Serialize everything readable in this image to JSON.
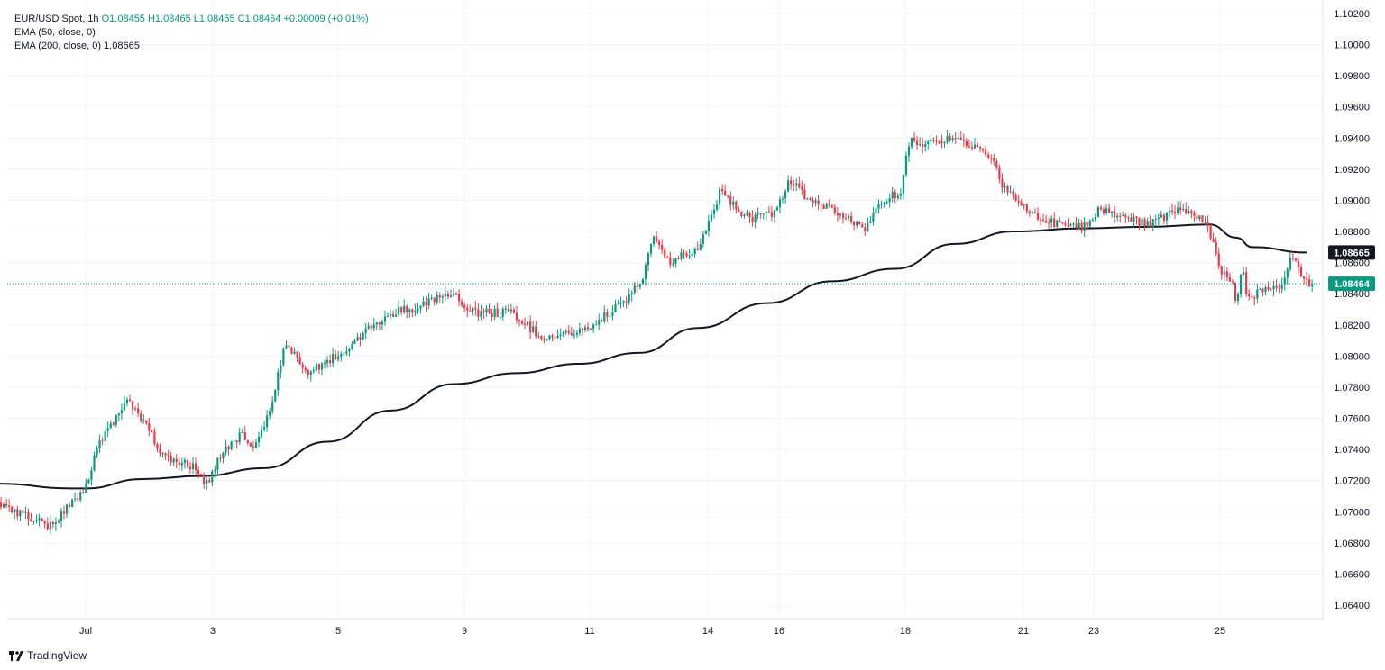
{
  "legend": {
    "symbol": "EUR/USD Spot, 1h",
    "ohlc": "O1.08455  H1.08465  L1.08455  C1.08464  +0.00009 (+0.01%)",
    "ema50": "EMA (50, close, 0)",
    "ema200": "EMA (200, close, 0)",
    "ema200_value": "1.08665"
  },
  "brand": "TradingView",
  "colors": {
    "up": "#089981",
    "down": "#f23645",
    "ema": "#131722",
    "grid": "#f0f3fa",
    "last_price": "#089981"
  },
  "chart_data": {
    "type": "candlestick",
    "symbol": "EUR/USD Spot",
    "timeframe": "1h",
    "ylim": [
      1.063,
      1.1025
    ],
    "y_ticks": [
      "1.10200",
      "1.10000",
      "1.09800",
      "1.09600",
      "1.09400",
      "1.09200",
      "1.09000",
      "1.08800",
      "1.08600",
      "1.08400",
      "1.08200",
      "1.08000",
      "1.07800",
      "1.07600",
      "1.07400",
      "1.07200",
      "1.07000",
      "1.06800",
      "1.06600",
      "1.06400"
    ],
    "x_ticks": [
      "Jul",
      "3",
      "5",
      "9",
      "11",
      "14",
      "16",
      "18",
      "21",
      "23",
      "25"
    ],
    "price_path": [
      [
        "Jun 28 00:00",
        1.0705
      ],
      [
        "Jun 28 14:00",
        1.069
      ],
      [
        "Jul 1 00:00",
        1.0715
      ],
      [
        "Jul 1 04:00",
        1.074
      ],
      [
        "Jul 1 16:00",
        1.077
      ],
      [
        "Jul 1 22:00",
        1.076
      ],
      [
        "Jul 2 06:00",
        1.0735
      ],
      [
        "Jul 2 16:00",
        1.073
      ],
      [
        "Jul 2 22:00",
        1.0718
      ],
      [
        "Jul 3 04:00",
        1.074
      ],
      [
        "Jul 3 12:00",
        1.075
      ],
      [
        "Jul 3 16:00",
        1.074
      ],
      [
        "Jul 3 22:00",
        1.0765
      ],
      [
        "Jul 4 04:00",
        1.0808
      ],
      [
        "Jul 4 12:00",
        1.079
      ],
      [
        "Jul 5 00:00",
        1.08
      ],
      [
        "Jul 5 08:00",
        1.0812
      ],
      [
        "Jul 5 20:00",
        1.0828
      ],
      [
        "Jul 8 04:00",
        1.083
      ],
      [
        "Jul 8 20:00",
        1.084
      ],
      [
        "Jul 9 04:00",
        1.0827
      ],
      [
        "Jul 9 18:00",
        1.0828
      ],
      [
        "Jul 10 06:00",
        1.0812
      ],
      [
        "Jul 10 20:00",
        1.0815
      ],
      [
        "Jul 11 06:00",
        1.0825
      ],
      [
        "Jul 11 16:00",
        1.0838
      ],
      [
        "Jul 11 22:00",
        1.085
      ],
      [
        "Jul 12 02:00",
        1.088
      ],
      [
        "Jul 12 08:00",
        1.086
      ],
      [
        "Jul 12 20:00",
        1.0868
      ],
      [
        "Jul 15 04:00",
        1.0905
      ],
      [
        "Jul 15 14:00",
        1.0888
      ],
      [
        "Jul 15 22:00",
        1.0892
      ],
      [
        "Jul 16 04:00",
        1.0912
      ],
      [
        "Jul 16 12:00",
        1.09
      ],
      [
        "Jul 17 00:00",
        1.0892
      ],
      [
        "Jul 17 08:00",
        1.088
      ],
      [
        "Jul 17 16:00",
        1.09
      ],
      [
        "Jul 17 22:00",
        1.0905
      ],
      [
        "Jul 18 02:00",
        1.094
      ],
      [
        "Jul 18 08:00",
        1.0935
      ],
      [
        "Jul 18 16:00",
        1.094
      ],
      [
        "Jul 19 02:00",
        1.0935
      ],
      [
        "Jul 19 10:00",
        1.093
      ],
      [
        "Jul 19 16:00",
        1.0908
      ],
      [
        "Jul 22 00:00",
        1.0895
      ],
      [
        "Jul 22 10:00",
        1.0885
      ],
      [
        "Jul 22 20:00",
        1.0882
      ],
      [
        "Jul 23 02:00",
        1.0895
      ],
      [
        "Jul 23 12:00",
        1.0888
      ],
      [
        "Jul 23 22:00",
        1.0885
      ],
      [
        "Jul 24 06:00",
        1.0893
      ],
      [
        "Jul 24 14:00",
        1.0892
      ],
      [
        "Jul 24 20:00",
        1.088
      ],
      [
        "Jul 25 00:00",
        1.0855
      ],
      [
        "Jul 25 08:00",
        1.0853
      ],
      [
        "Jul 25 16:00",
        1.0845
      ],
      [
        "Jul 25 20:00",
        1.083
      ],
      [
        "Jul 26 00:00",
        1.0848
      ],
      [
        "Jul 26 04:00",
        1.0862
      ],
      [
        "Jul 26 10:00",
        1.084
      ],
      [
        "Jul 26 20:00",
        1.0838
      ],
      [
        "Jul 29 04:00",
        1.0845
      ],
      [
        "Jul 29 10:00",
        1.0845
      ],
      [
        "Jul 29 14:00",
        1.0865
      ],
      [
        "Jul 29 18:00",
        1.085
      ],
      [
        "Jul 29 22:00",
        1.08464
      ]
    ],
    "ema200_path": [
      [
        "Jun 28 00:00",
        1.0718
      ],
      [
        "Jun 28 20:00",
        1.0715
      ],
      [
        "Jul 1 00:00",
        1.0715
      ],
      [
        "Jul 1 22:00",
        1.0721
      ],
      [
        "Jul 2 20:00",
        1.0723
      ],
      [
        "Jul 3 20:00",
        1.0728
      ],
      [
        "Jul 4 20:00",
        1.0745
      ],
      [
        "Jul 5 20:00",
        1.0765
      ],
      [
        "Jul 8 20:00",
        1.0782
      ],
      [
        "Jul 9 20:00",
        1.0789
      ],
      [
        "Jul 10 20:00",
        1.0795
      ],
      [
        "Jul 11 20:00",
        1.0802
      ],
      [
        "Jul 12 20:00",
        1.0818
      ],
      [
        "Jul 15 20:00",
        1.0834
      ],
      [
        "Jul 16 20:00",
        1.0848
      ],
      [
        "Jul 17 20:00",
        1.0856
      ],
      [
        "Jul 18 20:00",
        1.0872
      ],
      [
        "Jul 19 20:00",
        1.088
      ],
      [
        "Jul 22 20:00",
        1.0882
      ],
      [
        "Jul 23 20:00",
        1.0883
      ],
      [
        "Jul 24 20:00",
        1.08845
      ],
      [
        "Jul 25 20:00",
        1.0876
      ],
      [
        "Jul 26 20:00",
        1.087
      ],
      [
        "Jul 29 20:00",
        1.08665
      ]
    ],
    "last_price": "1.08464",
    "ema200_last": "1.08665"
  }
}
